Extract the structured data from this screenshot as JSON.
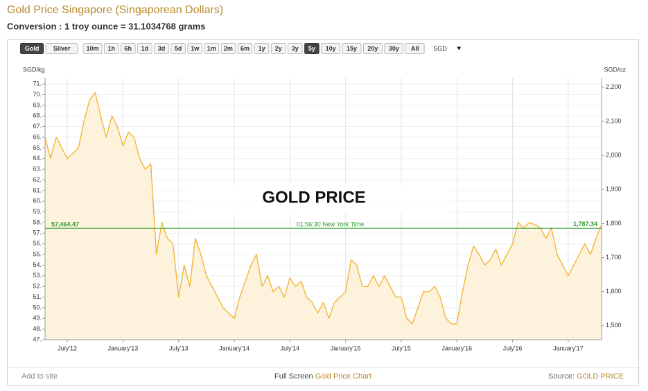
{
  "header": {
    "title": "Gold Price Singapore (Singaporean Dollars)",
    "subtitle": "Conversion : 1 troy ounce = 31.1034768 grams"
  },
  "toolbar": {
    "buttons": [
      "Gold",
      "Silver",
      "10m",
      "1h",
      "6h",
      "1d",
      "3d",
      "5d",
      "1w",
      "1m",
      "2m",
      "6m",
      "1y",
      "2y",
      "3y",
      "5y",
      "10y",
      "15y",
      "20y",
      "30y",
      "All"
    ],
    "selected": [
      "Gold",
      "5y"
    ],
    "currency": "SGD"
  },
  "chart_data": {
    "type": "line",
    "watermark": "GOLD PRICE",
    "y_label": "SGD/kg",
    "y2_label": "SGD/oz",
    "xlim": [
      2012.3,
      2017.3
    ],
    "xticks": [
      {
        "value": 2012.5,
        "label": "July'12"
      },
      {
        "value": 2013.0,
        "label": "January'13"
      },
      {
        "value": 2013.5,
        "label": "July'13"
      },
      {
        "value": 2014.0,
        "label": "January'14"
      },
      {
        "value": 2014.5,
        "label": "July'14"
      },
      {
        "value": 2015.0,
        "label": "January'15"
      },
      {
        "value": 2015.5,
        "label": "July'15"
      },
      {
        "value": 2016.0,
        "label": "January'16"
      },
      {
        "value": 2016.5,
        "label": "July'16"
      },
      {
        "value": 2017.0,
        "label": "January'17"
      }
    ],
    "ylim": [
      47000,
      71600
    ],
    "yticks": [
      {
        "value": 47000,
        "label": "47."
      },
      {
        "value": 48000,
        "label": "48."
      },
      {
        "value": 49000,
        "label": "49."
      },
      {
        "value": 50000,
        "label": "50."
      },
      {
        "value": 51000,
        "label": "51."
      },
      {
        "value": 52000,
        "label": "52."
      },
      {
        "value": 53000,
        "label": "53."
      },
      {
        "value": 54000,
        "label": "54."
      },
      {
        "value": 55000,
        "label": "55."
      },
      {
        "value": 56000,
        "label": "56."
      },
      {
        "value": 57000,
        "label": "57."
      },
      {
        "value": 58000,
        "label": "58."
      },
      {
        "value": 59000,
        "label": "59."
      },
      {
        "value": 60000,
        "label": "60."
      },
      {
        "value": 61000,
        "label": "61."
      },
      {
        "value": 62000,
        "label": "62."
      },
      {
        "value": 63000,
        "label": "63."
      },
      {
        "value": 64000,
        "label": "64."
      },
      {
        "value": 65000,
        "label": "65."
      },
      {
        "value": 66000,
        "label": "66."
      },
      {
        "value": 67000,
        "label": "67."
      },
      {
        "value": 68000,
        "label": "68."
      },
      {
        "value": 69000,
        "label": "69."
      },
      {
        "value": 70000,
        "label": "70."
      },
      {
        "value": 71000,
        "label": "71."
      }
    ],
    "y2lim": [
      1459,
      2228
    ],
    "y2ticks": [
      {
        "value": 1500,
        "label": "1,500"
      },
      {
        "value": 1600,
        "label": "1,600"
      },
      {
        "value": 1700,
        "label": "1,700"
      },
      {
        "value": 1800,
        "label": "1,800"
      },
      {
        "value": 1900,
        "label": "1,900"
      },
      {
        "value": 2000,
        "label": "2,000"
      },
      {
        "value": 2100,
        "label": "2,100"
      },
      {
        "value": 2200,
        "label": "2,200"
      }
    ],
    "grid": true,
    "x": [
      2012.3,
      2012.35,
      2012.4,
      2012.45,
      2012.5,
      2012.55,
      2012.6,
      2012.65,
      2012.7,
      2012.75,
      2012.8,
      2012.85,
      2012.9,
      2012.95,
      2013.0,
      2013.05,
      2013.1,
      2013.15,
      2013.2,
      2013.25,
      2013.3,
      2013.35,
      2013.4,
      2013.45,
      2013.5,
      2013.55,
      2013.6,
      2013.65,
      2013.7,
      2013.75,
      2013.8,
      2013.85,
      2013.9,
      2013.95,
      2014.0,
      2014.05,
      2014.1,
      2014.15,
      2014.2,
      2014.25,
      2014.3,
      2014.35,
      2014.4,
      2014.45,
      2014.5,
      2014.55,
      2014.6,
      2014.65,
      2014.7,
      2014.75,
      2014.8,
      2014.85,
      2014.9,
      2014.95,
      2015.0,
      2015.05,
      2015.1,
      2015.15,
      2015.2,
      2015.25,
      2015.3,
      2015.35,
      2015.4,
      2015.45,
      2015.5,
      2015.55,
      2015.6,
      2015.65,
      2015.7,
      2015.75,
      2015.8,
      2015.85,
      2015.9,
      2015.95,
      2016.0,
      2016.05,
      2016.1,
      2016.15,
      2016.2,
      2016.25,
      2016.3,
      2016.35,
      2016.4,
      2016.45,
      2016.5,
      2016.55,
      2016.6,
      2016.65,
      2016.7,
      2016.75,
      2016.8,
      2016.85,
      2016.9,
      2016.95,
      2017.0,
      2017.05,
      2017.1,
      2017.15,
      2017.2,
      2017.25,
      2017.3
    ],
    "series": [
      {
        "color": "#f2b636",
        "fill": "#fdf2dc",
        "values": [
          66000,
          64000,
          66000,
          65000,
          64000,
          64500,
          65000,
          67500,
          69500,
          70200,
          68000,
          66000,
          68000,
          67000,
          65200,
          66500,
          66000,
          64000,
          63000,
          63500,
          55000,
          58000,
          56500,
          56000,
          51000,
          54000,
          52000,
          56500,
          55000,
          53000,
          52000,
          51000,
          50000,
          49500,
          49000,
          51000,
          52500,
          54000,
          55000,
          52000,
          53000,
          51500,
          52000,
          51000,
          52800,
          52000,
          52500,
          51000,
          50500,
          49500,
          50500,
          49000,
          50500,
          51000,
          51500,
          54500,
          54000,
          52000,
          52000,
          53000,
          52000,
          53000,
          52000,
          51000,
          51000,
          49000,
          48500,
          50000,
          51500,
          51500,
          52000,
          51000,
          49000,
          48500,
          48500,
          51500,
          54000,
          55800,
          55000,
          54000,
          54500,
          55500,
          54000,
          55000,
          56000,
          58000,
          57500,
          58000,
          57800,
          57500,
          56500,
          57500,
          55000,
          54000,
          53000,
          54000,
          55000,
          56000,
          55000,
          56500,
          57800
        ]
      }
    ],
    "current": {
      "value": 57464.47,
      "label": "57,464.47",
      "value_oz": 1787.34,
      "label_oz": "1,787.34",
      "time": "01:56:30 New York Time",
      "color": "#2e9e2e"
    }
  },
  "footer": {
    "left": "Add to site",
    "center": "Full Screen",
    "center_link": "Gold Price Chart",
    "right": "Source:",
    "right_link": "GOLD PRICE"
  }
}
